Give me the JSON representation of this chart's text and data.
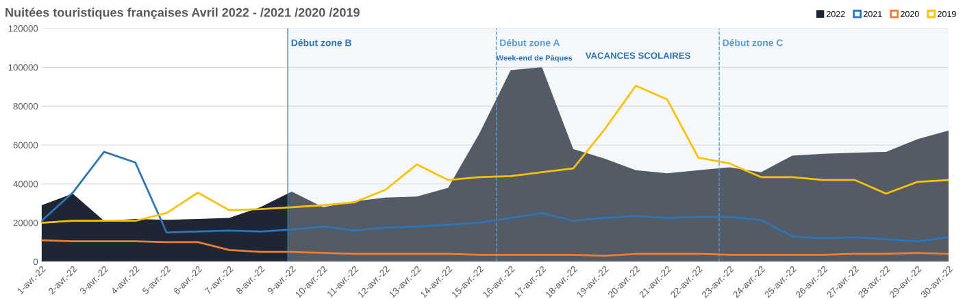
{
  "chart_data": {
    "type": "line",
    "title": "Nuitées touristiques françaises Avril 2022 - /2021 /2020 /2019",
    "x": [
      "2022-04-01",
      "2022-04-02",
      "2022-04-03",
      "2022-04-04",
      "2022-04-05",
      "2022-04-06",
      "2022-04-07",
      "2022-04-08",
      "2022-04-09",
      "2022-04-10",
      "2022-04-11",
      "2022-04-12",
      "2022-04-13",
      "2022-04-14",
      "2022-04-15",
      "2022-04-16",
      "2022-04-17",
      "2022-04-18",
      "2022-04-19",
      "2022-04-20",
      "2022-04-21",
      "2022-04-22",
      "2022-04-23",
      "2022-04-24",
      "2022-04-25",
      "2022-04-26",
      "2022-04-27",
      "2022-04-28",
      "2022-04-29",
      "2022-04-30"
    ],
    "series": [
      {
        "name": "2022",
        "type": "area",
        "color": "#1f2633",
        "values": [
          29000,
          35000,
          21000,
          22000,
          21500,
          22000,
          22500,
          28000,
          36000,
          28000,
          31000,
          33000,
          33500,
          38000,
          66000,
          98500,
          100000,
          58000,
          53000,
          47000,
          45500,
          47000,
          48500,
          46000,
          54500,
          55500,
          56000,
          56500,
          63000,
          67500
        ]
      },
      {
        "name": "2021",
        "color": "#2e75b6",
        "values": [
          21000,
          35500,
          56500,
          51000,
          15000,
          15500,
          16000,
          15500,
          16500,
          18000,
          16000,
          17500,
          18000,
          19000,
          20000,
          22500,
          25000,
          21000,
          22500,
          23500,
          22500,
          23000,
          23000,
          21500,
          13000,
          12000,
          12500,
          11500,
          10500,
          12500
        ]
      },
      {
        "name": "2020",
        "color": "#ed7d31",
        "values": [
          11000,
          10500,
          10500,
          10500,
          10000,
          10000,
          6000,
          5000,
          5000,
          4500,
          4000,
          4000,
          4000,
          4000,
          3500,
          3500,
          3500,
          3500,
          3000,
          4000,
          4000,
          4000,
          3500,
          3500,
          3500,
          3500,
          4000,
          4000,
          4500,
          4000
        ]
      },
      {
        "name": "2019",
        "color": "#ffc000",
        "values": [
          20000,
          21000,
          21000,
          21000,
          25000,
          35500,
          26500,
          27000,
          28000,
          29000,
          30500,
          37000,
          50000,
          42000,
          43500,
          44000,
          46000,
          48000,
          68000,
          90500,
          83500,
          53500,
          50500,
          43500,
          43500,
          42000,
          42000,
          35000,
          41000,
          42000
        ]
      }
    ],
    "xlim": [
      "2022-04-01",
      "2022-04-30"
    ],
    "xticks": [
      {
        "value": "2022-04-01",
        "label": "1-avr.-22"
      },
      {
        "value": "2022-04-02",
        "label": "2-avr.-22"
      },
      {
        "value": "2022-04-03",
        "label": "3-avr.-22"
      },
      {
        "value": "2022-04-04",
        "label": "4-avr.-22"
      },
      {
        "value": "2022-04-05",
        "label": "5-avr.-22"
      },
      {
        "value": "2022-04-06",
        "label": "6-avr.-22"
      },
      {
        "value": "2022-04-07",
        "label": "7-avr.-22"
      },
      {
        "value": "2022-04-08",
        "label": "8-avr.-22"
      },
      {
        "value": "2022-04-09",
        "label": "9-avr.-22"
      },
      {
        "value": "2022-04-10",
        "label": "10-avr.-22"
      },
      {
        "value": "2022-04-11",
        "label": "11-avr.-22"
      },
      {
        "value": "2022-04-12",
        "label": "12-avr.-22"
      },
      {
        "value": "2022-04-13",
        "label": "13-avr.-22"
      },
      {
        "value": "2022-04-14",
        "label": "14-avr.-22"
      },
      {
        "value": "2022-04-15",
        "label": "15-avr.-22"
      },
      {
        "value": "2022-04-16",
        "label": "16-avr.-22"
      },
      {
        "value": "2022-04-17",
        "label": "17-avr.-22"
      },
      {
        "value": "2022-04-18",
        "label": "18-avr.-22"
      },
      {
        "value": "2022-04-19",
        "label": "19-avr.-22"
      },
      {
        "value": "2022-04-20",
        "label": "20-avr.-22"
      },
      {
        "value": "2022-04-21",
        "label": "21-avr.-22"
      },
      {
        "value": "2022-04-22",
        "label": "22-avr.-22"
      },
      {
        "value": "2022-04-23",
        "label": "23-avr.-22"
      },
      {
        "value": "2022-04-24",
        "label": "24-avr.-22"
      },
      {
        "value": "2022-04-25",
        "label": "25-avr.-22"
      },
      {
        "value": "2022-04-26",
        "label": "26-avr.-22"
      },
      {
        "value": "2022-04-27",
        "label": "27-avr.-22"
      },
      {
        "value": "2022-04-28",
        "label": "28-avr.-22"
      },
      {
        "value": "2022-04-29",
        "label": "29-avr.-22"
      },
      {
        "value": "2022-04-30",
        "label": "30-avr.-22"
      }
    ],
    "ylim": [
      0,
      120000
    ],
    "yticks": [
      0,
      20000,
      40000,
      60000,
      80000,
      100000,
      120000
    ],
    "grid": "y",
    "legend": "top right",
    "bands": [
      {
        "axis": "x",
        "from": "2022-04-08T21:00",
        "to": "2022-04-30",
        "label": "VACANCES SCOLAIRES",
        "color": "#dce6f2"
      }
    ],
    "ref_lines": [
      {
        "axis": "x",
        "value": "2022-04-08T21:00",
        "label": "Début zone B",
        "color": "#2e75b6",
        "line_style": "solid"
      },
      {
        "axis": "x",
        "value": "2022-04-15T13:00",
        "label": "Début zone A",
        "color": "#5b9bd5",
        "line_style": "dashed"
      },
      {
        "axis": "x",
        "value": "2022-04-22T16:00",
        "label": "Début zone C",
        "color": "#5b9bd5",
        "line_style": "dashed"
      }
    ],
    "annotations": [
      {
        "text": "Week-end de Pâques",
        "x": "2022-04-15T13:00",
        "y": 104500
      }
    ]
  }
}
